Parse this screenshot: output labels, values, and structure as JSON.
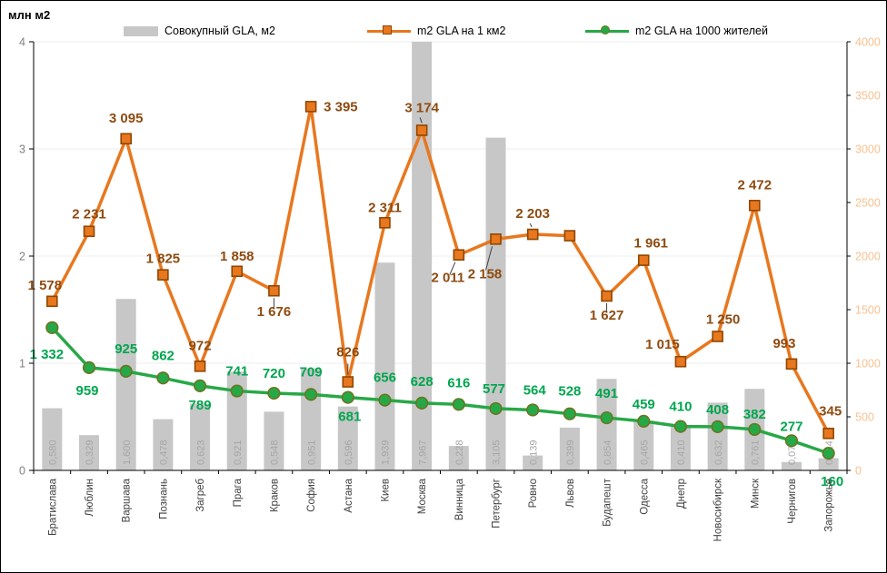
{
  "header": {
    "axis_unit": "млн м2"
  },
  "legend": [
    {
      "label": "Совокупный GLA, м2",
      "swatch": "bar-swatch",
      "color": "#C7C7C7"
    },
    {
      "label": "m2 GLA на 1 км2",
      "swatch": "line-square-swatch",
      "color": "#E8771E"
    },
    {
      "label": "m2 GLA на 1000 жителей",
      "swatch": "line-circle-swatch",
      "color": "#27A846"
    }
  ],
  "colors": {
    "bar": "#C7C7C7",
    "bar_label": "#A6A6A6",
    "orange_line": "#E8771E",
    "orange_marker_border": "#8F4700",
    "orange_label": "#8E4B10",
    "green_line": "#27A846",
    "green_marker_border": "#6B7423",
    "green_label": "#00A64F",
    "left_axis_label": "#7F7F7F",
    "right_axis_label": "#FAC08F",
    "x_label": "#3F3F3F",
    "grid": "#EDEDED",
    "axis": "#000000",
    "leader": "#404040"
  },
  "chart_data": {
    "type": "bar",
    "subtype": "combo-bar-line",
    "title": "",
    "xlabel": "",
    "ylabel_left": "млн м2",
    "categories": [
      "Братислава",
      "Люблин",
      "Варшава",
      "Познань",
      "Загреб",
      "Прага",
      "Краков",
      "София",
      "Астана",
      "Киев",
      "Москва",
      "Винница",
      "Петербург",
      "Ровно",
      "Львов",
      "Будапешт",
      "Одесса",
      "Днепр",
      "Новосибирск",
      "Минск",
      "Чернигов",
      "Запорожье"
    ],
    "series": [
      {
        "name": "Совокупный GLA, м2",
        "type": "bar",
        "axis": "left",
        "values": [
          0.58,
          0.329,
          1.6,
          0.478,
          0.623,
          0.921,
          0.548,
          0.951,
          0.596,
          1.939,
          7.967,
          0.228,
          3.105,
          0.139,
          0.399,
          0.854,
          0.465,
          0.41,
          0.632,
          0.761,
          0.078,
          0.114
        ],
        "labels": [
          "0,580",
          "0,329",
          "1,600",
          "0,478",
          "0,623",
          "0,921",
          "0,548",
          "0,951",
          "0,596",
          "1,939",
          "7,967",
          "0,228",
          "3,105",
          "0,139",
          "0,399",
          "0,854",
          "0,465",
          "0,410",
          "0,632",
          "0,761",
          "0,078",
          "0,114"
        ]
      },
      {
        "name": "m2 GLA на 1 км2",
        "type": "line",
        "marker": "square",
        "axis": "right",
        "values": [
          1578,
          2231,
          3095,
          1825,
          972,
          1858,
          1676,
          3395,
          826,
          2311,
          3174,
          2011,
          2158,
          2203,
          2190,
          1627,
          1961,
          1015,
          1250,
          2472,
          993,
          345
        ],
        "labels": [
          "1 578",
          "2 231",
          "3 095",
          "1 825",
          "972",
          "1 858",
          "1 676",
          "3 395",
          "826",
          "2 311",
          "3 174",
          "2 011",
          "2 158",
          "2 203",
          "",
          "1 627",
          "1 961",
          "1 015",
          "1 250",
          "2 472",
          "993",
          "345"
        ]
      },
      {
        "name": "m2 GLA на 1000 жителей",
        "type": "line",
        "marker": "circle",
        "axis": "right",
        "values": [
          1332,
          959,
          925,
          862,
          789,
          741,
          720,
          709,
          681,
          656,
          628,
          616,
          577,
          564,
          528,
          491,
          459,
          410,
          408,
          382,
          277,
          160
        ],
        "labels": [
          "1 332",
          "959",
          "925",
          "862",
          "789",
          "741",
          "720",
          "709",
          "681",
          "656",
          "628",
          "616",
          "577",
          "564",
          "528",
          "491",
          "459",
          "410",
          "408",
          "382",
          "277",
          "160"
        ]
      }
    ],
    "left_axis": {
      "min": 0,
      "max": 4,
      "ticks": [
        0,
        1,
        2,
        3,
        4
      ],
      "tick_labels": [
        "0",
        "1",
        "2",
        "3",
        "4"
      ]
    },
    "right_axis": {
      "min": 0,
      "max": 4000,
      "ticks": [
        0,
        500,
        1000,
        1500,
        2000,
        2500,
        3000,
        3500,
        4000
      ],
      "tick_labels": [
        "0",
        "500",
        "1000",
        "1500",
        "2000",
        "2500",
        "3000",
        "3500",
        "4000"
      ]
    },
    "grid": "horizontal",
    "legend_position": "top"
  }
}
